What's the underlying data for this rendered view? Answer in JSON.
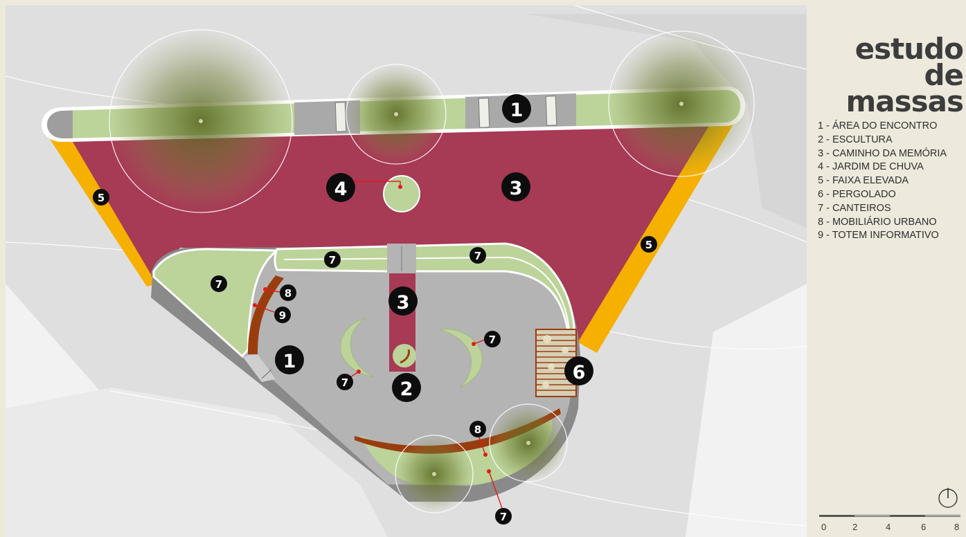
{
  "title": {
    "line1": "estudo de",
    "line2": "massas"
  },
  "legend": [
    "1 - ÁREA DO ENCONTRO",
    "2 - ESCULTURA",
    "3 - CAMINHO DA MEMÓRIA",
    "4 - JARDIM DE CHUVA",
    "5 - FAIXA ELEVADA",
    "6 - PERGOLADO",
    "7 - CANTEIROS",
    "8 - MOBILIÁRIO URBANO",
    "9 - TOTEM INFORMATIVO"
  ],
  "map_labels": {
    "n1a": "1",
    "n1b": "1",
    "n2": "2",
    "n3a": "3",
    "n3b": "3",
    "n4": "4",
    "n5a": "5",
    "n5b": "5",
    "n6": "6",
    "n7a": "7",
    "n7b": "7",
    "n7c": "7",
    "n7d": "7",
    "n7e": "7",
    "n7f": "7",
    "n8a": "8",
    "n8b": "8",
    "n9": "9"
  },
  "scale": {
    "ticks": [
      "0",
      "2",
      "4",
      "6",
      "8"
    ]
  },
  "colors": {
    "memory_path": "#a73a55",
    "raised_crossing": "#f5b000",
    "planters": "#bcd39a",
    "paving": "#b4b4b4",
    "furniture": "#9a3d0e",
    "background": "#ede9dc"
  },
  "icons": {
    "north": "north-arrow-icon"
  }
}
